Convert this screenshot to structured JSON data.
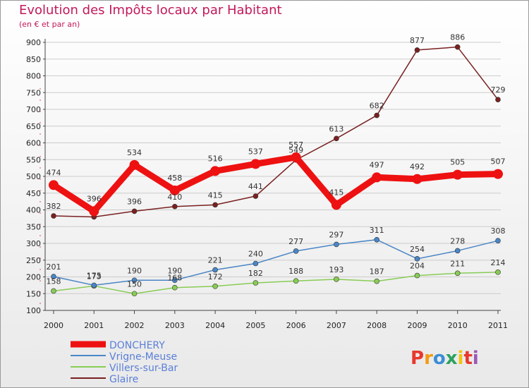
{
  "chart_data": {
    "type": "line",
    "title": "Evolution des Impôts locaux par Habitant",
    "subtitle": "(en € et par an)",
    "xlabel": "",
    "ylabel": "",
    "categories": [
      "2000",
      "2001",
      "2002",
      "2003",
      "2004",
      "2005",
      "2006",
      "2007",
      "2008",
      "2009",
      "2010",
      "2011"
    ],
    "ylim": [
      100,
      900
    ],
    "yticks": [
      100,
      150,
      200,
      250,
      300,
      350,
      400,
      450,
      500,
      550,
      600,
      650,
      700,
      750,
      800,
      850,
      900
    ],
    "grid": "horizontal",
    "legend_position": "bottom-left",
    "series": [
      {
        "name": "DONCHERY",
        "color": "#ee1111",
        "values": [
          474,
          396,
          534,
          458,
          516,
          537,
          557,
          415,
          497,
          492,
          505,
          507
        ],
        "labels": [
          "474",
          "396",
          "534",
          "458",
          "516",
          "537",
          "557",
          "415",
          "497",
          "492",
          "505",
          "507"
        ]
      },
      {
        "name": "Vrigne-Meuse",
        "color": "#4a86c6",
        "values": [
          201,
          175,
          190,
          190,
          221,
          240,
          277,
          297,
          311,
          254,
          278,
          308
        ],
        "labels": [
          "201",
          "175",
          "190",
          "190",
          "221",
          "240",
          "277",
          "297",
          "311",
          "254",
          "278",
          "308"
        ]
      },
      {
        "name": "Villers-sur-Bar",
        "color": "#88cc55",
        "values": [
          158,
          173,
          150,
          168,
          172,
          182,
          188,
          193,
          187,
          204,
          211,
          214
        ],
        "labels": [
          "158",
          "173",
          "150",
          "168",
          "172",
          "182",
          "188",
          "193",
          "187",
          "204",
          "211",
          "214"
        ]
      },
      {
        "name": "Glaire",
        "color": "#7a2020",
        "values": [
          382,
          379,
          396,
          410,
          415,
          441,
          549,
          613,
          682,
          877,
          886,
          729
        ],
        "labels": [
          "382",
          "",
          "396",
          "410",
          "415",
          "441",
          "549",
          "613",
          "682",
          "877",
          "886",
          "729"
        ]
      }
    ]
  },
  "brand": {
    "letters": [
      "P",
      "r",
      "o",
      "x",
      "i",
      "t",
      "i"
    ],
    "colors": [
      "#e8382c",
      "#f39c12",
      "#3b8fd4",
      "#2ca25f",
      "#f1c40f",
      "#e8382c",
      "#9b59b6"
    ]
  }
}
